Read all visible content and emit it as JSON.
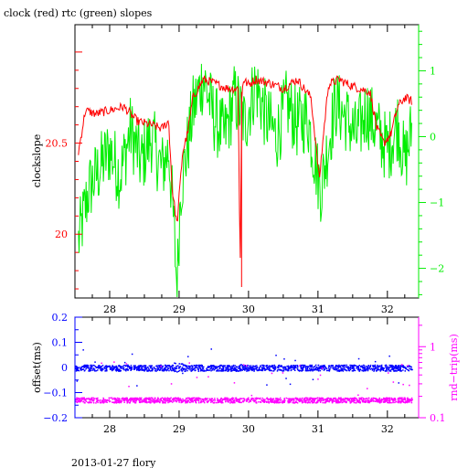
{
  "title": "clock (red) rtc (green) slopes",
  "footer": "2013-01-27 flory",
  "colors": {
    "red": "#ff0000",
    "green": "#00ee00",
    "blue": "#0000ff",
    "magenta": "#ff00ff",
    "axis": "#000000"
  },
  "chart_data": [
    {
      "type": "line",
      "title": "clock (red) rtc (green) slopes",
      "xlim": [
        27.5,
        32.45
      ],
      "x_ticks": [
        28,
        29,
        30,
        31,
        32
      ],
      "x_tick_labels": [
        "28",
        "29",
        "30",
        "31",
        "32"
      ],
      "left_axis": {
        "label": "clockslope",
        "color": "#ff0000",
        "lim": [
          19.65,
          21.15
        ],
        "ticks": [
          20,
          20.5
        ],
        "tick_labels": [
          "20",
          "20.5"
        ]
      },
      "right_axis": {
        "label": "",
        "color": "#00ee00",
        "lim": [
          -2.45,
          1.7
        ],
        "ticks": [
          -2,
          -1,
          0,
          1
        ],
        "tick_labels": [
          "−2",
          "−1",
          "0",
          "1"
        ]
      },
      "series": [
        {
          "axis": "left",
          "color": "#ff0000",
          "x": [
            27.55,
            27.65,
            27.8,
            28.0,
            28.2,
            28.4,
            28.6,
            28.75,
            28.85,
            28.9,
            28.97,
            29.05,
            29.12,
            29.2,
            29.35,
            29.5,
            29.7,
            29.85,
            29.88,
            29.9,
            29.92,
            30.0,
            30.1,
            30.3,
            30.5,
            30.7,
            30.9,
            30.98,
            31.02,
            31.08,
            31.15,
            31.3,
            31.45,
            31.6,
            31.75,
            31.85,
            31.95,
            32.05,
            32.15,
            32.25,
            32.35
          ],
          "y": [
            20.45,
            20.68,
            20.66,
            20.68,
            20.7,
            20.62,
            20.6,
            20.58,
            20.62,
            20.25,
            20.05,
            20.45,
            20.55,
            20.75,
            20.85,
            20.83,
            20.8,
            20.8,
            19.8,
            20.72,
            20.85,
            20.82,
            20.85,
            20.83,
            20.8,
            20.85,
            20.75,
            20.45,
            20.3,
            20.55,
            20.82,
            20.85,
            20.82,
            20.8,
            20.78,
            20.58,
            20.5,
            20.55,
            20.7,
            20.75,
            20.73
          ]
        },
        {
          "axis": "right",
          "color": "#00ee00",
          "x": [
            27.55,
            27.7,
            27.85,
            28.0,
            28.15,
            28.3,
            28.45,
            28.6,
            28.75,
            28.85,
            28.92,
            28.97,
            29.02,
            29.1,
            29.2,
            29.35,
            29.5,
            29.65,
            29.8,
            29.95,
            30.1,
            30.25,
            30.4,
            30.55,
            30.7,
            30.85,
            31.0,
            31.05,
            31.12,
            31.25,
            31.4,
            31.55,
            31.7,
            31.85,
            32.0,
            32.15,
            32.25,
            32.35
          ],
          "y": [
            -1.6,
            -0.8,
            -0.5,
            -0.2,
            -0.6,
            0.1,
            -0.4,
            0.0,
            -0.5,
            -0.2,
            -1.3,
            -2.3,
            -0.8,
            -0.3,
            0.4,
            0.9,
            0.3,
            0.0,
            0.6,
            0.2,
            0.8,
            0.3,
            0.0,
            0.5,
            0.2,
            0.3,
            -0.6,
            -0.8,
            -0.3,
            0.5,
            0.3,
            0.0,
            0.4,
            0.1,
            -0.2,
            0.2,
            -0.4,
            0.1
          ]
        }
      ]
    },
    {
      "type": "scatter",
      "title": "",
      "xlim": [
        27.5,
        32.45
      ],
      "x_ticks": [
        28,
        29,
        30,
        31,
        32
      ],
      "x_tick_labels": [
        "28",
        "29",
        "30",
        "31",
        "32"
      ],
      "left_axis": {
        "label": "offset(ms)",
        "color": "#0000ff",
        "lim": [
          -0.2,
          0.2
        ],
        "ticks": [
          -0.2,
          -0.1,
          0,
          0.1,
          0.2
        ],
        "tick_labels": [
          "−0.2",
          "−0.1",
          "0",
          "0.1",
          "0.2"
        ]
      },
      "right_axis": {
        "label": "rnd−trip(ms)",
        "color": "#ff00ff",
        "scale": "log",
        "lim": [
          0.1,
          2.6
        ],
        "ticks": [
          0.1,
          1
        ],
        "tick_labels": [
          "0.1",
          "1"
        ]
      },
      "series": [
        {
          "axis": "left",
          "color": "#0000ff",
          "x_range": [
            27.5,
            32.35
          ],
          "center": 0.0,
          "band": [
            -0.012,
            0.012
          ]
        },
        {
          "axis": "right",
          "color": "#ff00ff",
          "x_range": [
            27.5,
            32.35
          ],
          "center": 0.18,
          "band": [
            0.165,
            0.195
          ]
        }
      ]
    }
  ]
}
